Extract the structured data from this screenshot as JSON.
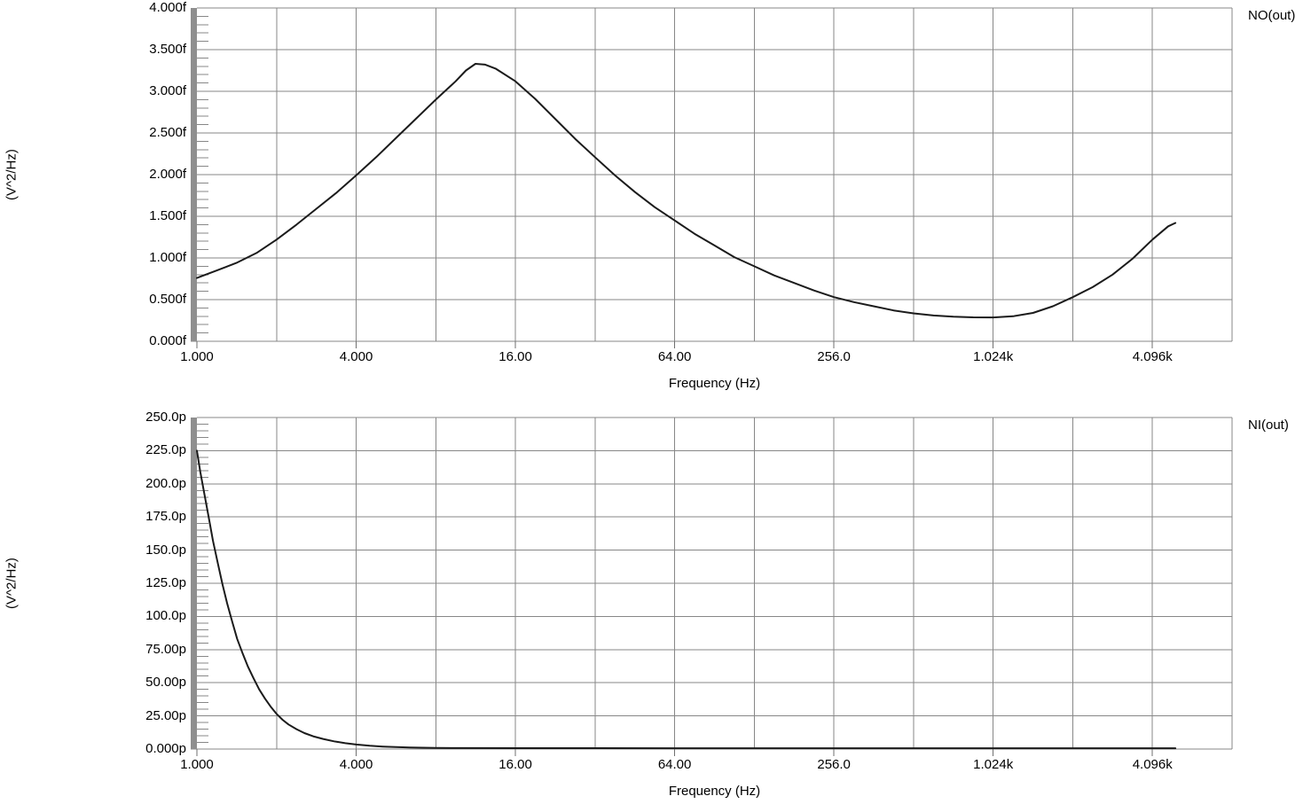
{
  "figure": {
    "background": "#ffffff",
    "colors": {
      "grid": "#878787",
      "axis_bar": "#8f8f8f",
      "tick_mark": "#6f6f6f",
      "curve": "#1b1b1b",
      "text": "#000000"
    }
  },
  "chart_data": [
    {
      "type": "line",
      "legend": "NO(out)",
      "xlabel": "Frequency (Hz)",
      "ylabel": "(V^2/Hz)",
      "x_scale": "log2",
      "x_range_hz": [
        1,
        8192
      ],
      "y_unit": "fV^2/Hz",
      "y_range": [
        0,
        4
      ],
      "grid": true,
      "legend_position": "outside-top-right",
      "minor_tick_divisions": 5,
      "x_ticks": [
        {
          "label": "1.000",
          "hz": 1
        },
        {
          "label": "4.000",
          "hz": 4
        },
        {
          "label": "16.00",
          "hz": 16
        },
        {
          "label": "64.00",
          "hz": 64
        },
        {
          "label": "256.0",
          "hz": 256
        },
        {
          "label": "1.024k",
          "hz": 1024
        },
        {
          "label": "4.096k",
          "hz": 4096
        }
      ],
      "x_gridlines_hz": [
        2,
        4,
        8,
        16,
        32,
        64,
        128,
        256,
        512,
        1024,
        2048,
        4096
      ],
      "y_ticks": [
        {
          "label": "4.000f",
          "value": 4.0
        },
        {
          "label": "3.500f",
          "value": 3.5
        },
        {
          "label": "3.000f",
          "value": 3.0
        },
        {
          "label": "2.500f",
          "value": 2.5
        },
        {
          "label": "2.000f",
          "value": 2.0
        },
        {
          "label": "1.500f",
          "value": 1.5
        },
        {
          "label": "1.000f",
          "value": 1.0
        },
        {
          "label": "0.500f",
          "value": 0.5
        },
        {
          "label": "0.000f",
          "value": 0.0
        }
      ],
      "series": [
        {
          "name": "NO(out)",
          "points": [
            [
              1,
              0.76
            ],
            [
              1.19,
              0.85
            ],
            [
              1.41,
              0.94
            ],
            [
              1.68,
              1.06
            ],
            [
              2,
              1.22
            ],
            [
              2.38,
              1.4
            ],
            [
              2.83,
              1.59
            ],
            [
              3.36,
              1.78
            ],
            [
              4,
              1.99
            ],
            [
              4.76,
              2.21
            ],
            [
              5.66,
              2.44
            ],
            [
              6.73,
              2.67
            ],
            [
              8,
              2.9
            ],
            [
              9.51,
              3.12
            ],
            [
              10.4,
              3.25
            ],
            [
              11.3,
              3.33
            ],
            [
              12.3,
              3.32
            ],
            [
              13.5,
              3.27
            ],
            [
              16,
              3.12
            ],
            [
              19,
              2.91
            ],
            [
              22.6,
              2.67
            ],
            [
              26.9,
              2.43
            ],
            [
              32,
              2.21
            ],
            [
              38.1,
              1.99
            ],
            [
              45.3,
              1.79
            ],
            [
              53.8,
              1.61
            ],
            [
              64,
              1.45
            ],
            [
              76.1,
              1.29
            ],
            [
              90.5,
              1.15
            ],
            [
              107.6,
              1.01
            ],
            [
              128,
              0.9
            ],
            [
              152.2,
              0.79
            ],
            [
              181,
              0.7
            ],
            [
              215.3,
              0.61
            ],
            [
              256,
              0.53
            ],
            [
              304.4,
              0.47
            ],
            [
              362,
              0.42
            ],
            [
              430.5,
              0.37
            ],
            [
              512,
              0.335
            ],
            [
              608.9,
              0.31
            ],
            [
              724.1,
              0.295
            ],
            [
              861.1,
              0.287
            ],
            [
              1024,
              0.286
            ],
            [
              1217.7,
              0.3
            ],
            [
              1448.2,
              0.34
            ],
            [
              1722.2,
              0.42
            ],
            [
              2048,
              0.53
            ],
            [
              2435.5,
              0.65
            ],
            [
              2896.3,
              0.8
            ],
            [
              3444.3,
              0.99
            ],
            [
              4096,
              1.22
            ],
            [
              4700,
              1.38
            ],
            [
              5000,
              1.42
            ]
          ]
        }
      ]
    },
    {
      "type": "line",
      "legend": "NI(out)",
      "xlabel": "Frequency (Hz)",
      "ylabel": "(V^2/Hz)",
      "x_scale": "log2",
      "x_range_hz": [
        1,
        8192
      ],
      "y_unit": "pV^2/Hz",
      "y_range": [
        0,
        250
      ],
      "grid": true,
      "legend_position": "outside-top-right",
      "minor_tick_divisions": 5,
      "x_ticks": [
        {
          "label": "1.000",
          "hz": 1
        },
        {
          "label": "4.000",
          "hz": 4
        },
        {
          "label": "16.00",
          "hz": 16
        },
        {
          "label": "64.00",
          "hz": 64
        },
        {
          "label": "256.0",
          "hz": 256
        },
        {
          "label": "1.024k",
          "hz": 1024
        },
        {
          "label": "4.096k",
          "hz": 4096
        }
      ],
      "x_gridlines_hz": [
        2,
        4,
        8,
        16,
        32,
        64,
        128,
        256,
        512,
        1024,
        2048,
        4096
      ],
      "y_ticks": [
        {
          "label": "250.0p",
          "value": 250
        },
        {
          "label": "225.0p",
          "value": 225
        },
        {
          "label": "200.0p",
          "value": 200
        },
        {
          "label": "175.0p",
          "value": 175
        },
        {
          "label": "150.0p",
          "value": 150
        },
        {
          "label": "125.0p",
          "value": 125
        },
        {
          "label": "100.0p",
          "value": 100
        },
        {
          "label": "75.00p",
          "value": 75
        },
        {
          "label": "50.00p",
          "value": 50
        },
        {
          "label": "25.00p",
          "value": 25
        },
        {
          "label": "0.000p",
          "value": 0
        }
      ],
      "series": [
        {
          "name": "NI(out)",
          "points": [
            [
              1,
              225
            ],
            [
              1.03,
              209
            ],
            [
              1.07,
              191
            ],
            [
              1.11,
              174
            ],
            [
              1.15,
              157
            ],
            [
              1.2,
              140
            ],
            [
              1.25,
              124
            ],
            [
              1.3,
              110
            ],
            [
              1.36,
              96
            ],
            [
              1.42,
              83
            ],
            [
              1.49,
              72
            ],
            [
              1.56,
              62
            ],
            [
              1.64,
              53
            ],
            [
              1.72,
              45
            ],
            [
              1.81,
              38
            ],
            [
              1.9,
              32
            ],
            [
              2,
              26.5
            ],
            [
              2.11,
              22
            ],
            [
              2.22,
              18.5
            ],
            [
              2.38,
              15
            ],
            [
              2.55,
              12
            ],
            [
              2.75,
              9.6
            ],
            [
              3,
              7.6
            ],
            [
              3.3,
              5.8
            ],
            [
              3.64,
              4.4
            ],
            [
              4,
              3.4
            ],
            [
              4.5,
              2.5
            ],
            [
              5.04,
              1.9
            ],
            [
              5.66,
              1.5
            ],
            [
              6.35,
              1.2
            ],
            [
              7.13,
              1.0
            ],
            [
              8,
              0.85
            ],
            [
              10,
              0.75
            ],
            [
              16,
              0.7
            ],
            [
              32,
              0.65
            ],
            [
              64,
              0.6
            ],
            [
              128,
              0.6
            ],
            [
              256,
              0.6
            ],
            [
              512,
              0.6
            ],
            [
              1024,
              0.6
            ],
            [
              2048,
              0.6
            ],
            [
              4096,
              0.6
            ],
            [
              5000,
              0.6
            ]
          ]
        }
      ]
    }
  ]
}
